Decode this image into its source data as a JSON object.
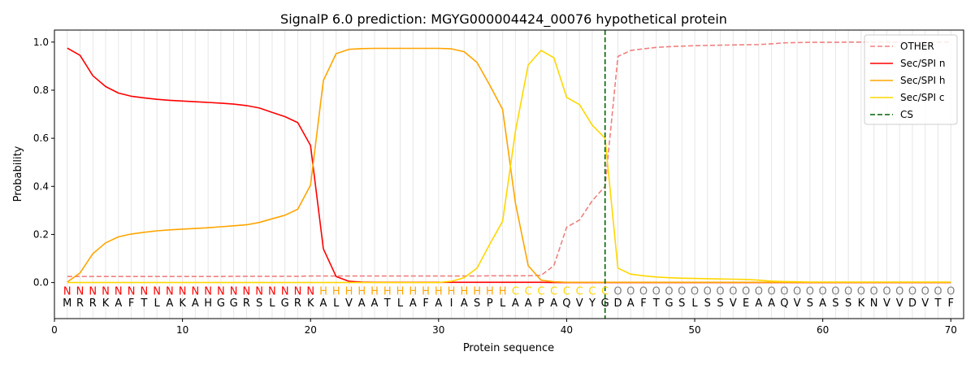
{
  "chart_data": {
    "type": "line",
    "title": "SignalP 6.0 prediction: MGYG000004424_00076 hypothetical protein",
    "xlabel": "Protein sequence",
    "ylabel": "Probability",
    "xlim": [
      0,
      71
    ],
    "ylim": [
      -0.15,
      1.05
    ],
    "x_ticks": [
      0,
      10,
      20,
      30,
      40,
      50,
      60,
      70
    ],
    "y_ticks": [
      0.0,
      0.2,
      0.4,
      0.6,
      0.8,
      1.0
    ],
    "x_tick_labels": [
      "0",
      "10",
      "20",
      "30",
      "40",
      "50",
      "60",
      "70"
    ],
    "y_tick_labels": [
      "0.0",
      "0.2",
      "0.4",
      "0.6",
      "0.8",
      "1.0"
    ],
    "grid": "vertical lines at every residue",
    "legend_position": "top-right",
    "sequence": "MRRKAFTLAKAHGGRSLGRKALVAATLAFAIASPLAAPAQVYGDAFTGSLSSVEAAQVSASSKNVVDVTF",
    "labels": "NNNNNNNNNNNNNNNNNNNNHHHHHHHHHHHHHHHCCCCCCCCOOOOOOOOOOOOOOOOOOOOOOOOOOO",
    "label_colors": {
      "N": "#ff0000",
      "H": "#ffa500",
      "C": "#ffd700",
      "O": "#808080"
    },
    "cleavage_site": 43,
    "series": [
      {
        "name": "OTHER",
        "color": "#f08080",
        "dash": "dashed",
        "values": [
          0.025,
          0.025,
          0.025,
          0.025,
          0.025,
          0.025,
          0.025,
          0.025,
          0.025,
          0.025,
          0.025,
          0.025,
          0.025,
          0.026,
          0.026,
          0.026,
          0.026,
          0.026,
          0.026,
          0.027,
          0.027,
          0.027,
          0.027,
          0.027,
          0.027,
          0.027,
          0.027,
          0.027,
          0.027,
          0.027,
          0.027,
          0.027,
          0.027,
          0.028,
          0.028,
          0.028,
          0.028,
          0.03,
          0.07,
          0.23,
          0.26,
          0.34,
          0.4,
          0.94,
          0.965,
          0.972,
          0.978,
          0.981,
          0.983,
          0.985,
          0.986,
          0.987,
          0.988,
          0.989,
          0.99,
          0.993,
          0.997,
          0.998,
          0.999,
          0.999,
          0.999,
          1.0,
          1.0,
          1.0,
          1.0,
          1.0,
          1.0,
          1.0,
          1.0,
          1.0
        ]
      },
      {
        "name": "Sec/SPI n",
        "color": "#ff0000",
        "dash": "solid",
        "values": [
          0.975,
          0.945,
          0.86,
          0.815,
          0.788,
          0.775,
          0.768,
          0.762,
          0.758,
          0.755,
          0.752,
          0.749,
          0.746,
          0.742,
          0.736,
          0.726,
          0.708,
          0.69,
          0.665,
          0.57,
          0.14,
          0.025,
          0.005,
          0.002,
          0.001,
          0.001,
          0.001,
          0.001,
          0.001,
          0.001,
          0.001,
          0.001,
          0.001,
          0.001,
          0.001,
          0.001,
          0.001,
          0.001,
          0.0,
          0.0,
          0.0,
          0.0,
          0.0,
          0.0,
          0.0,
          0.0,
          0.0,
          0.0,
          0.0,
          0.0,
          0.0,
          0.0,
          0.0,
          0.0,
          0.0,
          0.0,
          0.0,
          0.0,
          0.0,
          0.0,
          0.0,
          0.0,
          0.0,
          0.0,
          0.0,
          0.0,
          0.0,
          0.0,
          0.0,
          0.0
        ]
      },
      {
        "name": "Sec/SPI h",
        "color": "#ffa500",
        "dash": "solid",
        "values": [
          0.002,
          0.04,
          0.12,
          0.165,
          0.19,
          0.202,
          0.209,
          0.215,
          0.219,
          0.222,
          0.225,
          0.228,
          0.232,
          0.236,
          0.24,
          0.25,
          0.265,
          0.28,
          0.305,
          0.405,
          0.84,
          0.952,
          0.97,
          0.973,
          0.974,
          0.974,
          0.974,
          0.974,
          0.974,
          0.974,
          0.972,
          0.96,
          0.915,
          0.82,
          0.72,
          0.33,
          0.07,
          0.01,
          0.003,
          0.001,
          0.001,
          0.001,
          0.001,
          0.001,
          0.001,
          0.001,
          0.001,
          0.001,
          0.001,
          0.001,
          0.001,
          0.001,
          0.001,
          0.001,
          0.001,
          0.001,
          0.001,
          0.001,
          0.001,
          0.001,
          0.001,
          0.001,
          0.001,
          0.001,
          0.001,
          0.001,
          0.001,
          0.001,
          0.001,
          0.001
        ]
      },
      {
        "name": "Sec/SPI c",
        "color": "#ffd700",
        "dash": "solid",
        "values": [
          0.0,
          0.0,
          0.0,
          0.0,
          0.0,
          0.0,
          0.0,
          0.0,
          0.0,
          0.0,
          0.0,
          0.0,
          0.0,
          0.0,
          0.0,
          0.0,
          0.0,
          0.0,
          0.0,
          0.0,
          0.0,
          0.0,
          0.0,
          0.0,
          0.0,
          0.0,
          0.0,
          0.0,
          0.0,
          0.0,
          0.005,
          0.02,
          0.06,
          0.16,
          0.255,
          0.63,
          0.905,
          0.965,
          0.935,
          0.77,
          0.74,
          0.655,
          0.6,
          0.06,
          0.035,
          0.028,
          0.023,
          0.02,
          0.018,
          0.017,
          0.016,
          0.015,
          0.014,
          0.013,
          0.01,
          0.006,
          0.004,
          0.003,
          0.002,
          0.002,
          0.002,
          0.002,
          0.002,
          0.002,
          0.002,
          0.002,
          0.002,
          0.002,
          0.002,
          0.002
        ]
      }
    ],
    "legend": [
      {
        "label": "OTHER",
        "color": "#f08080",
        "dash": "dashed"
      },
      {
        "label": "Sec/SPI n",
        "color": "#ff0000",
        "dash": "solid"
      },
      {
        "label": "Sec/SPI h",
        "color": "#ffa500",
        "dash": "solid"
      },
      {
        "label": "Sec/SPI c",
        "color": "#ffd700",
        "dash": "solid"
      },
      {
        "label": "CS",
        "color": "#006400",
        "dash": "dashed"
      }
    ]
  }
}
